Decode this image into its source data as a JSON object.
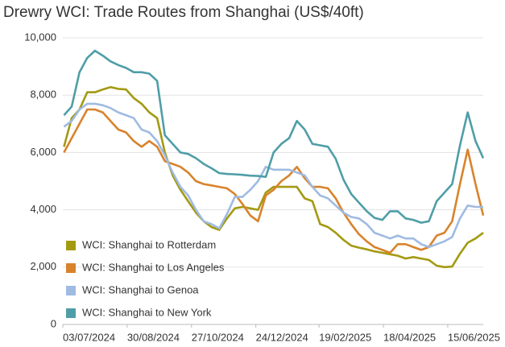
{
  "chart_data": {
    "type": "line",
    "title": "Drewry WCI: Trade Routes from Shanghai (US$/40ft)",
    "x": [
      "04/07/2024",
      "11/07/2024",
      "18/07/2024",
      "25/07/2024",
      "01/08/2024",
      "08/08/2024",
      "15/08/2024",
      "22/08/2024",
      "29/08/2024",
      "05/09/2024",
      "12/09/2024",
      "19/09/2024",
      "26/09/2024",
      "03/10/2024",
      "10/10/2024",
      "17/10/2024",
      "24/10/2024",
      "31/10/2024",
      "07/11/2024",
      "14/11/2024",
      "21/11/2024",
      "28/11/2024",
      "05/12/2024",
      "12/12/2024",
      "19/12/2024",
      "26/12/2024",
      "02/01/2025",
      "09/01/2025",
      "16/01/2025",
      "23/01/2025",
      "30/01/2025",
      "06/02/2025",
      "13/02/2025",
      "20/02/2025",
      "27/02/2025",
      "06/03/2025",
      "13/03/2025",
      "20/03/2025",
      "27/03/2025",
      "03/04/2025",
      "10/04/2025",
      "17/04/2025",
      "24/04/2025",
      "01/05/2025",
      "08/05/2025",
      "15/05/2025",
      "22/05/2025",
      "29/05/2025",
      "05/06/2025",
      "12/06/2025",
      "19/06/2025",
      "26/06/2025",
      "03/07/2025",
      "10/07/2025",
      "17/07/2025"
    ],
    "series": [
      {
        "name": "WCI: Shanghai to Rotterdam",
        "color": "#a39a12",
        "values": [
          6200,
          7200,
          7500,
          8100,
          8100,
          8200,
          8280,
          8220,
          8200,
          7900,
          7700,
          7400,
          7200,
          6000,
          5200,
          4700,
          4300,
          3900,
          3600,
          3400,
          3300,
          3700,
          4050,
          4100,
          4050,
          4000,
          4600,
          4800,
          4800,
          4800,
          4800,
          4400,
          4300,
          3500,
          3400,
          3200,
          2950,
          2750,
          2680,
          2620,
          2550,
          2500,
          2450,
          2400,
          2300,
          2350,
          2300,
          2250,
          2050,
          2000,
          2020,
          2470,
          2850,
          3000,
          3200
        ]
      },
      {
        "name": "WCI: Shanghai to Los Angeles",
        "color": "#d8832c",
        "values": [
          6000,
          6500,
          7000,
          7500,
          7500,
          7400,
          7100,
          6800,
          6700,
          6400,
          6200,
          6400,
          6200,
          5700,
          5600,
          5500,
          5300,
          5000,
          4900,
          4850,
          4800,
          4750,
          4550,
          4200,
          3800,
          3600,
          4500,
          4700,
          5000,
          5200,
          5500,
          5100,
          4800,
          4800,
          4750,
          4400,
          3900,
          3500,
          3150,
          2900,
          2700,
          2600,
          2500,
          2800,
          2800,
          2700,
          2600,
          2700,
          3100,
          3200,
          3600,
          4900,
          6100,
          4900,
          3800
        ]
      },
      {
        "name": "WCI: Shanghai to Genoa",
        "color": "#9fbbe2",
        "values": [
          6900,
          7100,
          7500,
          7700,
          7700,
          7650,
          7550,
          7400,
          7300,
          7200,
          6800,
          6700,
          6400,
          5900,
          5300,
          4800,
          4500,
          4000,
          3600,
          3500,
          3350,
          3850,
          4450,
          4450,
          4700,
          5000,
          5500,
          5400,
          5400,
          5400,
          5300,
          5200,
          4800,
          4500,
          4400,
          4150,
          3900,
          3750,
          3700,
          3500,
          3200,
          3100,
          3000,
          3100,
          3000,
          3000,
          2800,
          2700,
          2800,
          2900,
          3050,
          3700,
          4150,
          4100,
          4100
        ]
      },
      {
        "name": "WCI: Shanghai to New York",
        "color": "#4f9ea7",
        "values": [
          7300,
          7600,
          8800,
          9300,
          9550,
          9380,
          9180,
          9050,
          8950,
          8800,
          8800,
          8750,
          8500,
          6600,
          6300,
          6000,
          5950,
          5800,
          5600,
          5450,
          5280,
          5250,
          5240,
          5220,
          5190,
          5180,
          5150,
          6000,
          6300,
          6500,
          7100,
          6800,
          6300,
          6250,
          6200,
          5780,
          5050,
          4550,
          4250,
          3950,
          3720,
          3650,
          3950,
          3950,
          3700,
          3650,
          3550,
          3600,
          4300,
          4600,
          4900,
          6250,
          7400,
          6400,
          5800
        ]
      }
    ],
    "xlim": [
      "03/07/2024",
      "17/07/2025"
    ],
    "xticks": [
      "03/07/2024",
      "30/08/2024",
      "27/10/2024",
      "24/12/2024",
      "19/02/2025",
      "18/04/2025",
      "15/06/2025"
    ],
    "ylim": [
      0,
      10000
    ],
    "yticks": [
      0,
      {
        "value": 2000,
        "label": "2,000"
      },
      {
        "value": 4000,
        "label": "4,000"
      },
      {
        "value": 6000,
        "label": "6,000"
      },
      {
        "value": 8000,
        "label": "8,000"
      },
      {
        "value": 10000,
        "label": "10,000"
      }
    ],
    "grid": true,
    "legend": "lower left"
  }
}
